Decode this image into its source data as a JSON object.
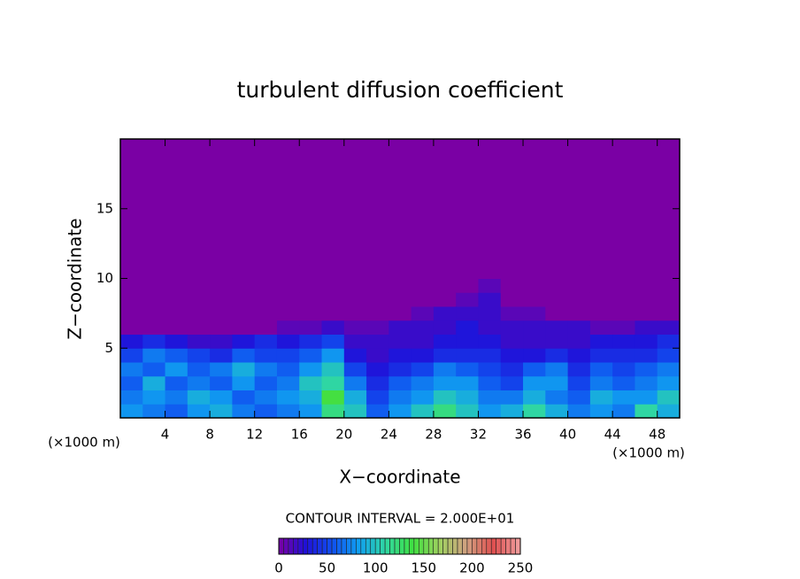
{
  "chart_data": {
    "type": "contour",
    "title": "turbulent diffusion coefficient",
    "x_label": "X−coordinate",
    "y_label": "Z−coordinate",
    "x_unit_label": "(×1000 m)",
    "y_unit_label": "(×1000 m)",
    "contour_label": "CONTOUR INTERVAL = 2.000E+01",
    "xlim": [
      0,
      50
    ],
    "ylim": [
      0,
      20
    ],
    "xticks": [
      4,
      8,
      12,
      16,
      20,
      24,
      28,
      32,
      36,
      40,
      44,
      48
    ],
    "yticks": [
      5,
      10,
      15
    ],
    "x_bins": [
      0,
      2,
      4,
      6,
      8,
      10,
      12,
      14,
      16,
      18,
      20,
      22,
      24,
      26,
      28,
      30,
      32,
      34,
      36,
      38,
      40,
      42,
      44,
      46,
      48,
      50
    ],
    "y_bins": [
      0,
      1,
      2,
      3,
      4,
      5,
      6,
      7,
      8,
      9,
      10,
      11,
      20
    ],
    "values": [
      [
        80,
        70,
        60,
        70,
        50,
        30,
        0,
        0,
        0,
        0,
        0,
        0
      ],
      [
        70,
        80,
        90,
        60,
        70,
        40,
        0,
        0,
        0,
        0,
        0,
        0
      ],
      [
        60,
        70,
        60,
        80,
        60,
        30,
        0,
        0,
        0,
        0,
        0,
        0
      ],
      [
        80,
        90,
        70,
        60,
        50,
        20,
        0,
        0,
        0,
        0,
        0,
        0
      ],
      [
        90,
        80,
        60,
        70,
        40,
        20,
        0,
        0,
        0,
        0,
        0,
        0
      ],
      [
        70,
        60,
        80,
        90,
        60,
        30,
        0,
        0,
        0,
        0,
        0,
        0
      ],
      [
        60,
        70,
        60,
        70,
        50,
        40,
        0,
        0,
        0,
        0,
        0,
        0
      ],
      [
        70,
        80,
        70,
        60,
        50,
        30,
        10,
        0,
        0,
        0,
        0,
        0
      ],
      [
        80,
        90,
        100,
        80,
        60,
        40,
        10,
        0,
        0,
        0,
        0,
        0
      ],
      [
        120,
        140,
        110,
        100,
        80,
        50,
        20,
        0,
        0,
        0,
        0,
        0
      ],
      [
        100,
        90,
        70,
        50,
        30,
        20,
        10,
        0,
        0,
        0,
        0,
        0
      ],
      [
        60,
        50,
        40,
        30,
        20,
        20,
        10,
        0,
        0,
        0,
        0,
        0
      ],
      [
        80,
        70,
        60,
        40,
        30,
        20,
        20,
        0,
        0,
        0,
        0,
        0
      ],
      [
        100,
        80,
        70,
        50,
        30,
        20,
        20,
        10,
        0,
        0,
        0,
        0
      ],
      [
        120,
        100,
        80,
        70,
        40,
        30,
        20,
        20,
        0,
        0,
        0,
        0
      ],
      [
        100,
        90,
        80,
        60,
        40,
        30,
        30,
        20,
        10,
        0,
        0,
        0
      ],
      [
        80,
        70,
        60,
        50,
        40,
        30,
        20,
        20,
        20,
        10,
        0,
        0
      ],
      [
        90,
        70,
        50,
        40,
        30,
        20,
        20,
        10,
        0,
        0,
        0,
        0
      ],
      [
        110,
        90,
        80,
        60,
        30,
        20,
        20,
        10,
        0,
        0,
        0,
        0
      ],
      [
        90,
        70,
        80,
        70,
        40,
        20,
        20,
        0,
        0,
        0,
        0,
        0
      ],
      [
        70,
        60,
        50,
        40,
        30,
        20,
        20,
        0,
        0,
        0,
        0,
        0
      ],
      [
        80,
        90,
        70,
        60,
        40,
        30,
        10,
        0,
        0,
        0,
        0,
        0
      ],
      [
        70,
        80,
        60,
        50,
        40,
        30,
        10,
        0,
        0,
        0,
        0,
        0
      ],
      [
        110,
        80,
        70,
        60,
        40,
        30,
        20,
        0,
        0,
        0,
        0,
        0
      ],
      [
        90,
        100,
        80,
        70,
        50,
        40,
        20,
        0,
        0,
        0,
        0,
        0
      ]
    ],
    "clim": [
      0,
      250
    ],
    "cticks": [
      0,
      50,
      100,
      150,
      200,
      250
    ],
    "colormap": [
      "#7a00a4",
      "#2010d8",
      "#1050f0",
      "#10a0f0",
      "#30d8a0",
      "#40e040",
      "#a0d060",
      "#d0a080",
      "#e05050",
      "#f0a0a0"
    ]
  }
}
